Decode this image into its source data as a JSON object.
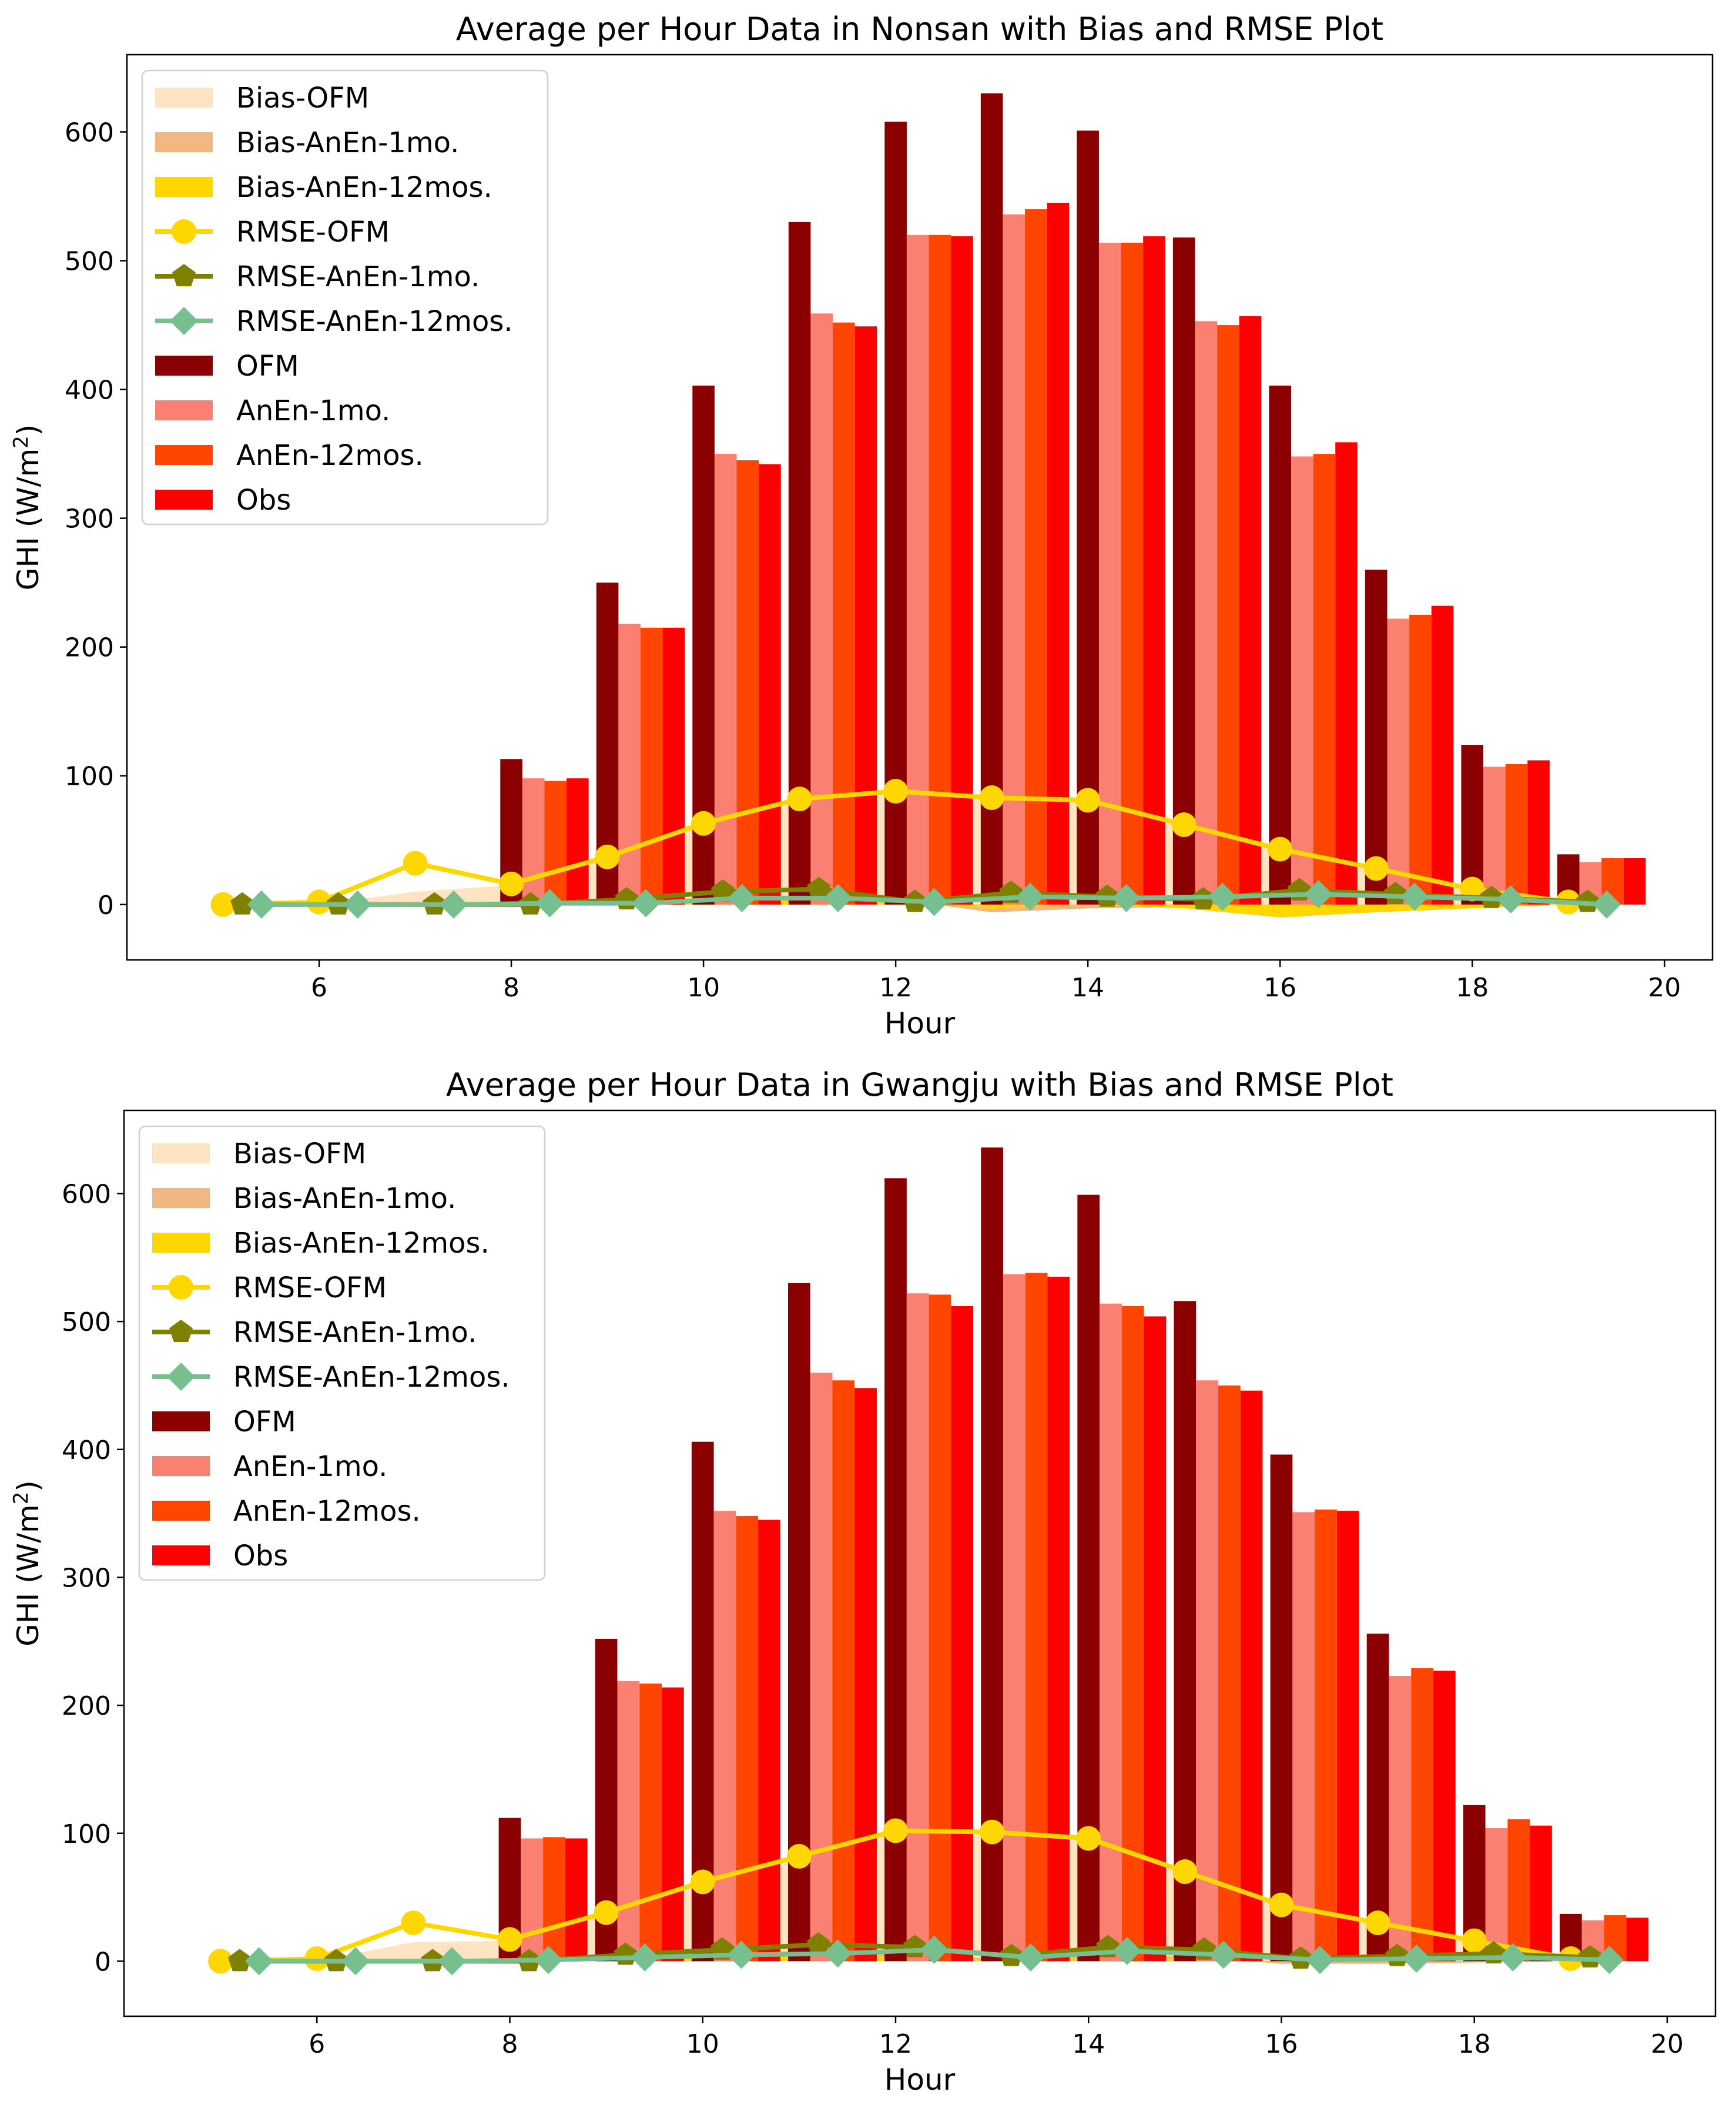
{
  "chart_data": [
    {
      "type": "bar",
      "title": "Average per Hour Data in Nonsan with Bias and RMSE Plot",
      "xlabel": "Hour",
      "ylabel_main": "GHI (W/m",
      "ylabel_sup": "2",
      "ylabel_end": ")",
      "xlim": [
        4.0,
        20.5
      ],
      "ylim": [
        -43,
        660
      ],
      "xticks": [
        6,
        8,
        10,
        12,
        14,
        16,
        18,
        20
      ],
      "yticks": [
        0,
        100,
        200,
        300,
        400,
        500,
        600
      ],
      "grid": false,
      "legend_position": "upper left",
      "colors": {
        "bias_ofm": "#ffe4c4",
        "bias_anen_1mo": "#f0b880",
        "bias_anen_12mos": "#ffd700",
        "rmse_ofm": "#ffd700",
        "rmse_anen_1mo": "#808000",
        "rmse_anen_12mos": "#77bf8f",
        "ofm": "#8b0000",
        "anen_1mo": "#fa8072",
        "anen_12mos": "#ff4500",
        "obs": "#ff0000"
      },
      "bars": {
        "hours": [
          8,
          9,
          10,
          11,
          12,
          13,
          14,
          15,
          16,
          17,
          18,
          19
        ],
        "series": [
          {
            "name": "OFM",
            "values": [
              113,
              250,
              403,
              530,
              608,
              630,
              601,
              518,
              403,
              260,
              124,
              39
            ]
          },
          {
            "name": "AnEn-1mo.",
            "values": [
              98,
              218,
              350,
              459,
              520,
              536,
              514,
              453,
              348,
              222,
              107,
              33
            ]
          },
          {
            "name": "AnEn-12mos.",
            "values": [
              96,
              215,
              345,
              452,
              520,
              540,
              514,
              450,
              350,
              225,
              109,
              36
            ]
          },
          {
            "name": "Obs",
            "values": [
              98,
              215,
              342,
              449,
              519,
              545,
              519,
              457,
              359,
              232,
              112,
              36
            ]
          }
        ]
      },
      "bias": {
        "hours": [
          5,
          6,
          7,
          8,
          9,
          10,
          11,
          12,
          13,
          14,
          15,
          16,
          17,
          18,
          19
        ],
        "series": [
          {
            "name": "Bias-OFM",
            "values": [
              0,
              0,
              10,
              15,
              35,
              61,
              81,
              88,
              82,
              80,
              61,
              43,
              27,
              12,
              2
            ]
          },
          {
            "name": "Bias-AnEn-1mo.",
            "values": [
              0,
              0,
              0,
              0,
              2,
              4,
              5,
              4,
              -6,
              -3,
              -2,
              -7,
              -5,
              -2,
              0
            ]
          },
          {
            "name": "Bias-AnEn-12mos.",
            "values": [
              0,
              0,
              0,
              0,
              1,
              3,
              3,
              2,
              -3,
              0,
              -3,
              -10,
              -6,
              -3,
              0
            ]
          }
        ]
      },
      "rmse": {
        "ofm_hours": [
          5,
          6,
          7,
          8,
          9,
          10,
          11,
          12,
          13,
          14,
          15,
          16,
          17,
          18,
          19
        ],
        "ofm_values": [
          0,
          2,
          32,
          16,
          37,
          63,
          82,
          88,
          83,
          81,
          62,
          43,
          28,
          12,
          2
        ],
        "anen_1mo_hours": [
          5.2,
          6.2,
          7.2,
          8.2,
          9.2,
          10.2,
          11.2,
          12.2,
          13.2,
          14.2,
          15.2,
          16.2,
          17.2,
          18.2,
          19.2
        ],
        "anen_1mo_values": [
          0,
          0,
          0,
          0,
          4,
          10,
          12,
          2,
          9,
          6,
          4,
          11,
          8,
          5,
          2
        ],
        "anen_12mos_hours": [
          5.4,
          6.4,
          7.4,
          8.4,
          9.4,
          10.4,
          11.4,
          12.4,
          13.4,
          14.4,
          15.4,
          16.4,
          17.4,
          18.4,
          19.4
        ],
        "anen_12mos_values": [
          0,
          0,
          0,
          1,
          1,
          5,
          5,
          2,
          6,
          5,
          6,
          8,
          6,
          4,
          0
        ]
      },
      "legend": [
        "Bias-OFM",
        "Bias-AnEn-1mo.",
        "Bias-AnEn-12mos.",
        "RMSE-OFM",
        "RMSE-AnEn-1mo.",
        "RMSE-AnEn-12mos.",
        "OFM",
        "AnEn-1mo.",
        "AnEn-12mos.",
        "Obs"
      ]
    },
    {
      "type": "bar",
      "title": "Average per Hour Data in Gwangju with Bias and RMSE Plot",
      "xlabel": "Hour",
      "ylabel_main": "GHI (W/m",
      "ylabel_sup": "2",
      "ylabel_end": ")",
      "xlim": [
        4.0,
        20.5
      ],
      "ylim": [
        -43,
        665
      ],
      "xticks": [
        6,
        8,
        10,
        12,
        14,
        16,
        18,
        20
      ],
      "yticks": [
        0,
        100,
        200,
        300,
        400,
        500,
        600
      ],
      "grid": false,
      "legend_position": "upper left",
      "colors": {
        "bias_ofm": "#ffe4c4",
        "bias_anen_1mo": "#f0b880",
        "bias_anen_12mos": "#ffd700",
        "rmse_ofm": "#ffd700",
        "rmse_anen_1mo": "#808000",
        "rmse_anen_12mos": "#77bf8f",
        "ofm": "#8b0000",
        "anen_1mo": "#fa8072",
        "anen_12mos": "#ff4500",
        "obs": "#ff0000"
      },
      "bars": {
        "hours": [
          8,
          9,
          10,
          11,
          12,
          13,
          14,
          15,
          16,
          17,
          18,
          19
        ],
        "series": [
          {
            "name": "OFM",
            "values": [
              112,
              252,
              406,
              530,
              612,
              636,
              599,
              516,
              396,
              256,
              122,
              37
            ]
          },
          {
            "name": "AnEn-1mo.",
            "values": [
              96,
              219,
              352,
              460,
              522,
              537,
              514,
              454,
              351,
              223,
              104,
              32
            ]
          },
          {
            "name": "AnEn-12mos.",
            "values": [
              97,
              217,
              348,
              454,
              521,
              538,
              512,
              450,
              353,
              229,
              111,
              36
            ]
          },
          {
            "name": "Obs",
            "values": [
              96,
              214,
              345,
              448,
              512,
              535,
              504,
              446,
              352,
              227,
              106,
              34
            ]
          }
        ]
      },
      "bias": {
        "hours": [
          5,
          6,
          7,
          8,
          9,
          10,
          11,
          12,
          13,
          14,
          15,
          16,
          17,
          18,
          19
        ],
        "series": [
          {
            "name": "Bias-OFM",
            "values": [
              0,
              0,
              15,
              16,
              38,
              61,
              81,
              100,
              100,
              95,
              70,
              44,
              29,
              15,
              3
            ]
          },
          {
            "name": "Bias-AnEn-1mo.",
            "values": [
              0,
              0,
              0,
              0,
              4,
              6,
              8,
              6,
              2,
              5,
              4,
              -2,
              -2,
              -1,
              0
            ]
          },
          {
            "name": "Bias-AnEn-12mos.",
            "values": [
              0,
              0,
              0,
              0,
              2,
              3,
              4,
              3,
              1,
              2,
              2,
              0,
              0,
              0,
              0
            ]
          }
        ]
      },
      "rmse": {
        "ofm_hours": [
          5,
          6,
          7,
          8,
          9,
          10,
          11,
          12,
          13,
          14,
          15,
          16,
          17,
          18,
          19
        ],
        "ofm_values": [
          0,
          2,
          30,
          17,
          38,
          62,
          82,
          102,
          101,
          96,
          70,
          44,
          30,
          16,
          2
        ],
        "anen_1mo_hours": [
          5.2,
          6.2,
          7.2,
          8.2,
          9.2,
          10.2,
          11.2,
          12.2,
          13.2,
          14.2,
          15.2,
          16.2,
          17.2,
          18.2,
          19.2
        ],
        "anen_1mo_values": [
          0,
          0,
          0,
          0,
          5,
          9,
          13,
          11,
          4,
          11,
          9,
          2,
          4,
          6,
          3
        ],
        "anen_12mos_hours": [
          5.4,
          6.4,
          7.4,
          8.4,
          9.4,
          10.4,
          11.4,
          12.4,
          13.4,
          14.4,
          15.4,
          16.4,
          17.4,
          18.4,
          19.4
        ],
        "anen_12mos_values": [
          0,
          0,
          0,
          1,
          3,
          5,
          6,
          9,
          3,
          8,
          5,
          1,
          2,
          3,
          1
        ]
      },
      "legend": [
        "Bias-OFM",
        "Bias-AnEn-1mo.",
        "Bias-AnEn-12mos.",
        "RMSE-OFM",
        "RMSE-AnEn-1mo.",
        "RMSE-AnEn-12mos.",
        "OFM",
        "AnEn-1mo.",
        "AnEn-12mos.",
        "Obs"
      ]
    }
  ]
}
